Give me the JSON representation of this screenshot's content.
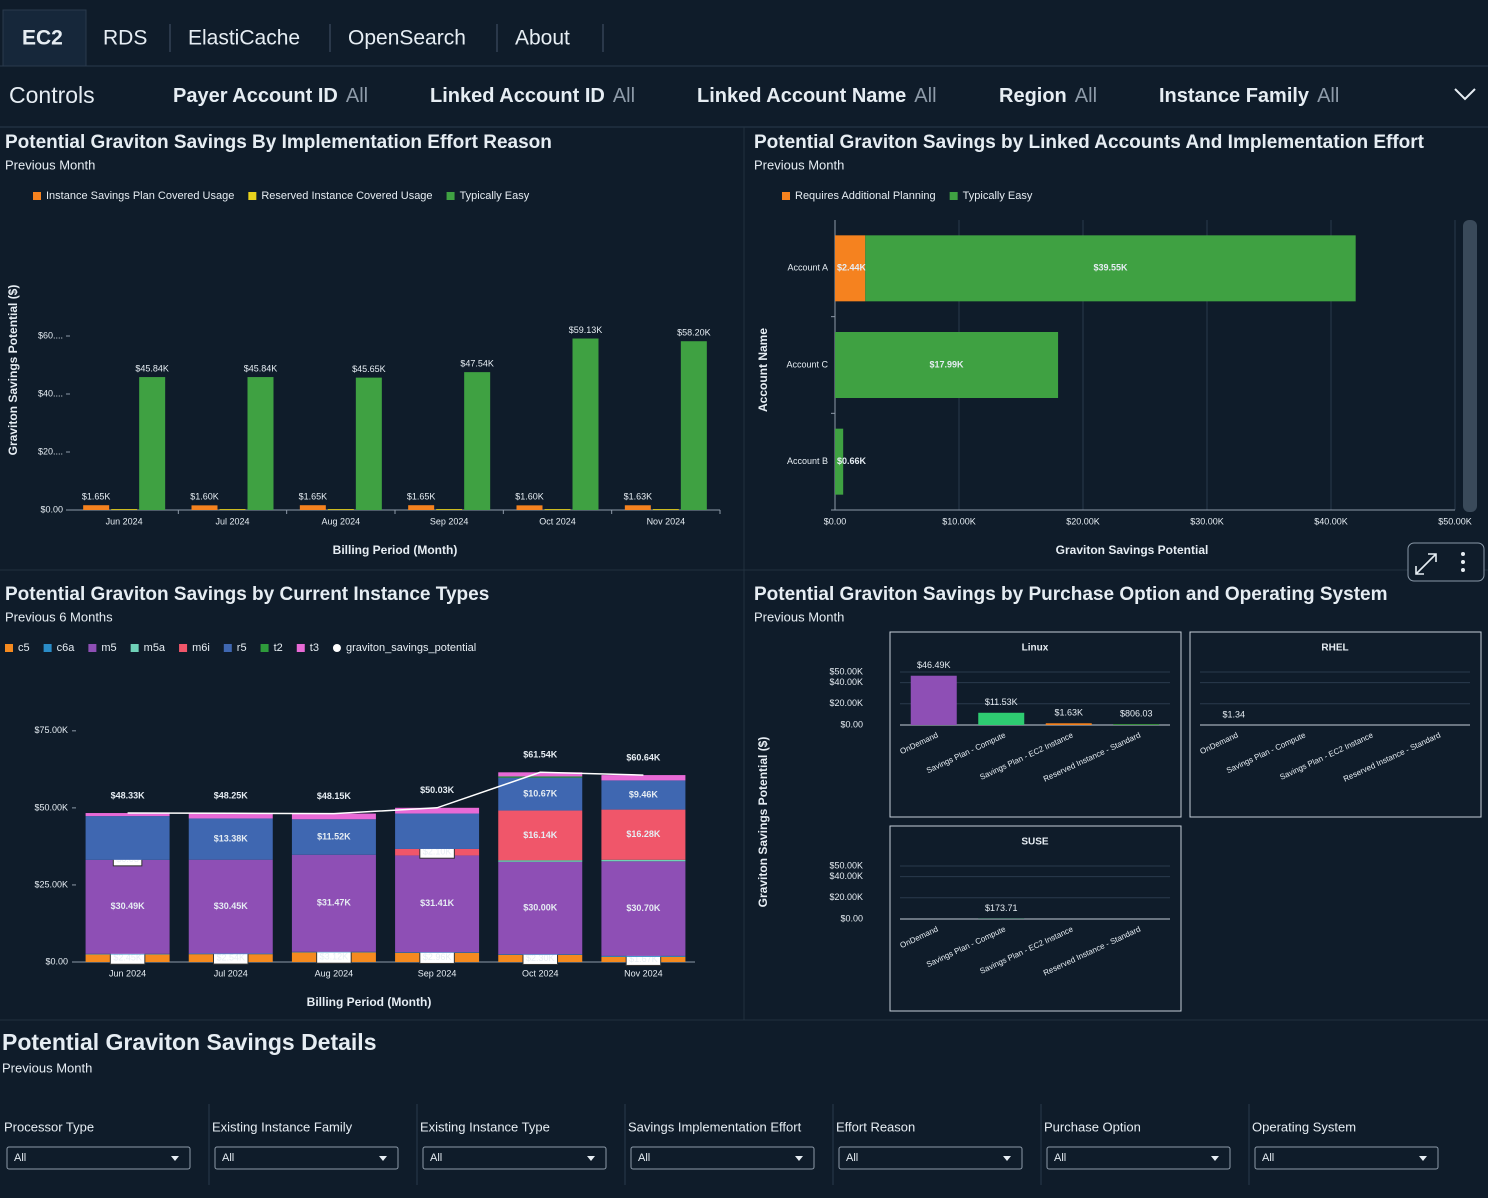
{
  "tabs": [
    "EC2",
    "RDS",
    "ElastiCache",
    "OpenSearch",
    "About"
  ],
  "controls": {
    "title": "Controls",
    "filters": [
      {
        "label": "Payer Account ID",
        "value": "All"
      },
      {
        "label": "Linked Account ID",
        "value": "All"
      },
      {
        "label": "Linked Account Name",
        "value": "All"
      },
      {
        "label": "Region",
        "value": "All"
      },
      {
        "label": "Instance Family",
        "value": "All"
      }
    ]
  },
  "chart_data": [
    {
      "type": "bar",
      "title": "Potential Graviton Savings By Implementation Effort Reason",
      "subtitle": "Previous Month",
      "x_label": "Billing Period (Month)",
      "y_label": "Graviton Savings Potential ($)",
      "categories": [
        "Jun 2024",
        "Jul 2024",
        "Aug 2024",
        "Sep 2024",
        "Oct 2024",
        "Nov 2024"
      ],
      "series": [
        {
          "name": "Instance Savings Plan Covered Usage",
          "color": "#f5821f",
          "values": [
            1650,
            1600,
            1650,
            1650,
            1600,
            1630
          ],
          "value_labels": [
            "$1.65K",
            "$1.60K",
            "$1.65K",
            "$1.65K",
            "$1.60K",
            "$1.63K"
          ]
        },
        {
          "name": "Reserved Instance Covered Usage",
          "color": "#e8d21d",
          "values": [
            300,
            300,
            300,
            300,
            300,
            300
          ]
        },
        {
          "name": "Typically Easy",
          "color": "#3fa142",
          "values": [
            45840,
            45840,
            45650,
            47540,
            59130,
            58200
          ],
          "value_labels": [
            "$45.84K",
            "$45.84K",
            "$45.65K",
            "$47.54K",
            "$59.13K",
            "$58.20K"
          ]
        }
      ],
      "ylim": [
        0,
        100000
      ],
      "yticks": [
        {
          "value": 0,
          "label": "$0.00"
        },
        {
          "value": 20000,
          "label": "$20...."
        },
        {
          "value": 40000,
          "label": "$40...."
        },
        {
          "value": 60000,
          "label": "$60...."
        }
      ],
      "grid": false
    },
    {
      "type": "bar",
      "orientation": "horizontal",
      "stacked": true,
      "title": "Potential Graviton Savings by Linked Accounts And Implementation Effort",
      "subtitle": "Previous Month",
      "x_label": "Graviton Savings Potential",
      "y_label": "Account Name",
      "categories": [
        "Account A",
        "Account C",
        "Account B"
      ],
      "series": [
        {
          "name": "Requires Additional Planning",
          "color": "#f5821f",
          "values": [
            2440,
            null,
            null
          ],
          "value_labels": [
            "$2.44K",
            null,
            null
          ]
        },
        {
          "name": "Typically Easy",
          "color": "#3fa142",
          "values": [
            39550,
            17990,
            660
          ],
          "value_labels": [
            "$39.55K",
            "$17.99K",
            "$0.66K"
          ]
        }
      ],
      "xlim": [
        0,
        50000
      ],
      "xticks": [
        {
          "value": 0,
          "label": "$0.00"
        },
        {
          "value": 10000,
          "label": "$10.00K"
        },
        {
          "value": 20000,
          "label": "$20.00K"
        },
        {
          "value": 30000,
          "label": "$30.00K"
        },
        {
          "value": 40000,
          "label": "$40.00K"
        },
        {
          "value": 50000,
          "label": "$50.00K"
        }
      ],
      "grid": true
    },
    {
      "type": "bar",
      "stacked": true,
      "title": "Potential Graviton Savings by Current Instance Types",
      "subtitle": "Previous 6 Months",
      "x_label": "Billing Period (Month)",
      "categories": [
        "Jun 2024",
        "Jul 2024",
        "Aug 2024",
        "Sep 2024",
        "Oct 2024",
        "Nov 2024"
      ],
      "series": [
        {
          "name": "c5",
          "color": "#f58a1f",
          "values": [
            2450,
            2540,
            3120,
            2960,
            2300,
            1670
          ],
          "value_labels": [
            "$2.45K",
            "$2.54K",
            "$3.12K",
            "$2.96K",
            "$2.30K",
            "$1.67K"
          ]
        },
        {
          "name": "c6a",
          "color": "#2a8cc7",
          "values": [
            200,
            200,
            200,
            200,
            200,
            300
          ]
        },
        {
          "name": "m5",
          "color": "#8e4fb5",
          "values": [
            30490,
            30450,
            31470,
            31410,
            30000,
            30700
          ],
          "value_labels": [
            "$30.49K",
            "$30.45K",
            "$31.47K",
            "$31.41K",
            "$30.00K",
            "$30.70K"
          ]
        },
        {
          "name": "m5a",
          "color": "#6fd1b8",
          "values": [
            null,
            null,
            null,
            null,
            500,
            500
          ]
        },
        {
          "name": "m6i",
          "color": "#f0566a",
          "values": [
            0.03,
            null,
            null,
            2100,
            16140,
            16280
          ],
          "value_labels": [
            "$0.03",
            null,
            null,
            "$2.10K",
            "$16.14K",
            "$16.28K"
          ]
        },
        {
          "name": "r5",
          "color": "#3f67b1",
          "values": [
            14200,
            13380,
            11520,
            11500,
            10670,
            9460
          ],
          "value_labels": [
            null,
            "$13.38K",
            "$11.52K",
            null,
            "$10.67K",
            "$9.46K"
          ]
        },
        {
          "name": "t2",
          "color": "#2e9b3b",
          "values": [
            null,
            null,
            null,
            null,
            400,
            null
          ]
        },
        {
          "name": "t3",
          "color": "#e86ad6",
          "values": [
            990,
            1680,
            1840,
            1860,
            1330,
            1730
          ]
        }
      ],
      "line": {
        "name": "graviton_savings_potential",
        "color": "#ffffff",
        "values": [
          48330,
          48250,
          48150,
          50030,
          61540,
          60640
        ],
        "value_labels": [
          "$48.33K",
          "$48.25K",
          "$48.15K",
          "$50.03K",
          "$61.54K",
          "$60.64K"
        ]
      },
      "ylim": [
        0,
        85000
      ],
      "yticks": [
        {
          "value": 0,
          "label": "$0.00"
        },
        {
          "value": 25000,
          "label": "$25.00K"
        },
        {
          "value": 50000,
          "label": "$50.00K"
        },
        {
          "value": 75000,
          "label": "$75.00K"
        }
      ],
      "grid": false
    },
    {
      "type": "bar",
      "facets_by": "operating_system",
      "title": "Potential Graviton Savings by Purchase Option and Operating System",
      "subtitle": "Previous Month",
      "y_label": "Graviton Savings Potential ($)",
      "categories": [
        "OnDemand",
        "Savings Plan - Compute",
        "Savings Plan - EC2 Instance",
        "Reserved Instance - Standard"
      ],
      "colors": [
        "#8e4fb5",
        "#2ecc71",
        "#f5821f",
        "#3fa142"
      ],
      "facets": [
        {
          "title": "Linux",
          "values": [
            46490,
            11530,
            1630,
            806.03
          ],
          "value_labels": [
            "$46.49K",
            "$11.53K",
            "$1.63K",
            "$806.03"
          ]
        },
        {
          "title": "RHEL",
          "values": [
            1.34,
            null,
            null,
            null
          ],
          "value_labels": [
            "$1.34",
            null,
            null,
            null
          ]
        },
        {
          "title": "SUSE",
          "values": [
            null,
            173.71,
            null,
            null
          ],
          "value_labels": [
            null,
            "$173.71",
            null,
            null
          ]
        }
      ],
      "ylim": [
        0,
        50000
      ],
      "yticks": [
        {
          "value": 0,
          "label": "$0.00"
        },
        {
          "value": 20000,
          "label": "$20.00K"
        },
        {
          "value": 40000,
          "label": "$40.00K"
        },
        {
          "value": 50000,
          "label": "$50.00K"
        }
      ],
      "grid": true
    }
  ],
  "details": {
    "title": "Potential Graviton Savings Details",
    "subtitle": "Previous Month",
    "filters": [
      {
        "label": "Processor Type",
        "value": "All"
      },
      {
        "label": "Existing Instance Family",
        "value": "All"
      },
      {
        "label": "Existing Instance Type",
        "value": "All"
      },
      {
        "label": "Savings Implementation Effort",
        "value": "All"
      },
      {
        "label": "Effort Reason",
        "value": "All"
      },
      {
        "label": "Purchase Option",
        "value": "All"
      },
      {
        "label": "Operating System",
        "value": "All"
      }
    ]
  }
}
